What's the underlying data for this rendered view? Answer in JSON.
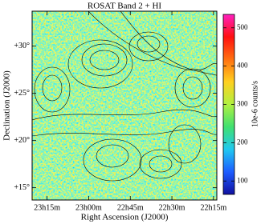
{
  "chart_data": {
    "type": "image",
    "title": "ROSAT Band 2 + HI",
    "xlabel": "Right Ascension (J2000)",
    "ylabel": "Declination (J2000)",
    "colorbar_label": "10e-6 counts/s",
    "xlim": [
      23.34,
      22.23
    ],
    "xticks": [
      {
        "value": 23.25,
        "label": "23h15m"
      },
      {
        "value": 23.0,
        "label": "23h00m"
      },
      {
        "value": 22.75,
        "label": "22h45m"
      },
      {
        "value": 22.5,
        "label": "22h30m"
      },
      {
        "value": 22.25,
        "label": "22h15m"
      }
    ],
    "ylim": [
      13.7,
      33.7
    ],
    "yticks": [
      {
        "value": 15,
        "label": "+15°"
      },
      {
        "value": 20,
        "label": "+20°"
      },
      {
        "value": 25,
        "label": "+25°"
      },
      {
        "value": 30,
        "label": "+30°"
      }
    ],
    "clim": [
      65,
      535
    ],
    "cticks": [
      100,
      200,
      300,
      400,
      500
    ],
    "colorscale": [
      "#1010a0",
      "#1e5cff",
      "#20c8f0",
      "#40e070",
      "#b0f040",
      "#ffd020",
      "#ff7010",
      "#ff1010",
      "#ff20c0"
    ]
  }
}
